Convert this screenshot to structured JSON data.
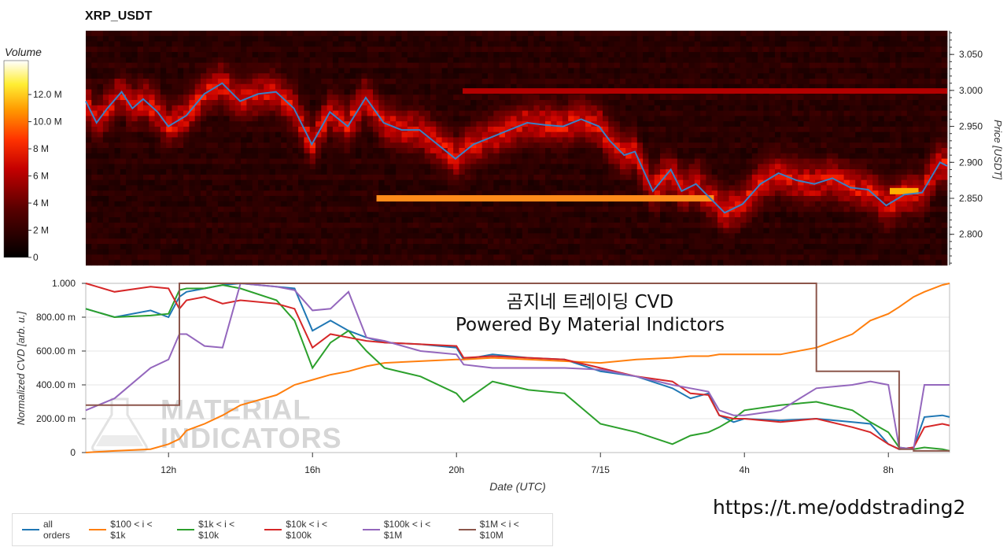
{
  "title": "XRP_USDT",
  "volume_colorbar": {
    "title": "Volume",
    "ticks": [
      {
        "label": "12.0 M",
        "value": 12000000
      },
      {
        "label": "10.0 M",
        "value": 10000000
      },
      {
        "label": "8 M",
        "value": 8000000
      },
      {
        "label": "6 M",
        "value": 6000000
      },
      {
        "label": "4 M",
        "value": 4000000
      },
      {
        "label": "2 M",
        "value": 2000000
      },
      {
        "label": "0",
        "value": 0
      }
    ],
    "max": 14500000
  },
  "overlay_text": {
    "line1": "곰지네 트레이딩 CVD",
    "line2": "Powered By Material Indictors"
  },
  "url": "https://t.me/oddstrading2",
  "watermark": {
    "line1": "MATERIAL",
    "line2": "INDICATORS"
  },
  "colors": {
    "all_orders": "#1f77b4",
    "s100_1k": "#ff7f0e",
    "s1k_10k": "#2ca02c",
    "s10k_100k": "#d62728",
    "s100k_1m": "#9467bd",
    "s1m_10m": "#8c564b",
    "price_line": "#3b7fc4"
  },
  "chart_data": [
    {
      "type": "heatmap",
      "title": "XRP_USDT",
      "ylabel": "Price [USDT]",
      "ylim": [
        2.757,
        3.083
      ],
      "yticks": [
        {
          "label": "3.050",
          "value": 3.05
        },
        {
          "label": "3.000",
          "value": 3.0
        },
        {
          "label": "2.950",
          "value": 2.95
        },
        {
          "label": "2.900",
          "value": 2.9
        },
        {
          "label": "2.850",
          "value": 2.85
        },
        {
          "label": "2.800",
          "value": 2.8
        }
      ],
      "x_range_hours": [
        9.7,
        33.7
      ],
      "price_line": {
        "x": [
          9.7,
          10.0,
          10.3,
          10.7,
          11.0,
          11.3,
          11.7,
          12.0,
          12.5,
          13.0,
          13.5,
          14.0,
          14.5,
          15.0,
          15.5,
          16.0,
          16.5,
          17.0,
          17.5,
          18.0,
          18.5,
          19.0,
          19.5,
          20.0,
          20.5,
          21.0,
          21.5,
          22.0,
          22.5,
          23.0,
          23.5,
          24.0,
          24.3,
          24.7,
          25.0,
          25.5,
          26.0,
          26.3,
          26.7,
          27.0,
          27.5,
          28.0,
          28.5,
          29.0,
          29.5,
          30.0,
          30.5,
          31.0,
          31.5,
          32.0,
          32.5,
          33.0,
          33.5,
          33.7
        ],
        "y": [
          2.985,
          2.955,
          2.975,
          2.998,
          2.975,
          2.988,
          2.97,
          2.95,
          2.965,
          2.995,
          3.01,
          2.985,
          2.995,
          2.998,
          2.975,
          2.925,
          2.97,
          2.95,
          2.99,
          2.955,
          2.945,
          2.945,
          2.925,
          2.905,
          2.925,
          2.935,
          2.945,
          2.955,
          2.952,
          2.95,
          2.96,
          2.95,
          2.93,
          2.91,
          2.915,
          2.86,
          2.89,
          2.86,
          2.87,
          2.855,
          2.83,
          2.842,
          2.87,
          2.885,
          2.875,
          2.87,
          2.878,
          2.865,
          2.862,
          2.84,
          2.855,
          2.858,
          2.9,
          2.895
        ]
      },
      "high_volume_band": {
        "price": 2.85,
        "x_start": 17.8,
        "x_end": 27.2
      },
      "high_volume_band_2": {
        "price": 2.86,
        "x_start": 32.1,
        "x_end": 32.9
      }
    },
    {
      "type": "line",
      "xlabel": "Date (UTC)",
      "ylabel": "Normalized CVD [arb. u.]",
      "ylim": [
        0,
        1.0
      ],
      "x_range_hours": [
        9.7,
        33.7
      ],
      "x_ticks": [
        {
          "label": "12h",
          "value": 12
        },
        {
          "label": "16h",
          "value": 16
        },
        {
          "label": "20h",
          "value": 20
        },
        {
          "label": "7/15",
          "value": 24
        },
        {
          "label": "4h",
          "value": 28
        },
        {
          "label": "8h",
          "value": 32
        }
      ],
      "y_ticks": [
        {
          "label": "1.000",
          "value": 1.0
        },
        {
          "label": "800.00 m",
          "value": 0.8
        },
        {
          "label": "600.00 m",
          "value": 0.6
        },
        {
          "label": "400.00 m",
          "value": 0.4
        },
        {
          "label": "200.00 m",
          "value": 0.2
        },
        {
          "label": "0",
          "value": 0.0
        }
      ],
      "x": [
        9.7,
        10.5,
        11.5,
        12.0,
        12.3,
        12.5,
        13.0,
        13.5,
        14.0,
        15.0,
        15.5,
        16.0,
        16.5,
        17.0,
        17.5,
        18.0,
        19.0,
        20.0,
        20.2,
        21.0,
        22.0,
        23.0,
        24.0,
        25.0,
        26.0,
        26.5,
        27.0,
        27.3,
        27.7,
        28.0,
        29.0,
        30.0,
        31.0,
        31.5,
        32.0,
        32.3,
        32.7,
        33.0,
        33.5,
        33.7
      ],
      "series": [
        {
          "name": "all orders",
          "key": "all_orders",
          "values": [
            0.85,
            0.8,
            0.84,
            0.8,
            0.92,
            0.95,
            0.97,
            0.99,
            1.0,
            0.98,
            0.97,
            0.72,
            0.78,
            0.72,
            0.68,
            0.65,
            0.64,
            0.62,
            0.55,
            0.58,
            0.56,
            0.55,
            0.48,
            0.45,
            0.38,
            0.32,
            0.35,
            0.22,
            0.18,
            0.2,
            0.19,
            0.2,
            0.18,
            0.17,
            0.05,
            0.02,
            0.03,
            0.21,
            0.22,
            0.21
          ]
        },
        {
          "name": "$100 < i < $1k",
          "key": "s100_1k",
          "values": [
            0.0,
            0.01,
            0.02,
            0.05,
            0.08,
            0.13,
            0.17,
            0.22,
            0.28,
            0.34,
            0.4,
            0.43,
            0.46,
            0.48,
            0.51,
            0.53,
            0.54,
            0.55,
            0.55,
            0.56,
            0.55,
            0.54,
            0.53,
            0.55,
            0.56,
            0.57,
            0.57,
            0.58,
            0.58,
            0.58,
            0.58,
            0.62,
            0.7,
            0.78,
            0.82,
            0.86,
            0.92,
            0.95,
            0.99,
            1.0
          ]
        },
        {
          "name": "$1k < i < $10k",
          "key": "s1k_10k",
          "values": [
            0.85,
            0.8,
            0.81,
            0.82,
            0.96,
            0.97,
            0.97,
            0.99,
            0.97,
            0.9,
            0.78,
            0.5,
            0.65,
            0.72,
            0.6,
            0.5,
            0.45,
            0.35,
            0.3,
            0.42,
            0.37,
            0.35,
            0.17,
            0.12,
            0.05,
            0.1,
            0.12,
            0.15,
            0.2,
            0.25,
            0.28,
            0.3,
            0.25,
            0.18,
            0.12,
            0.03,
            0.02,
            0.03,
            0.02,
            0.01
          ]
        },
        {
          "name": "$10k < i < $100k",
          "key": "s10k_100k",
          "values": [
            1.0,
            0.95,
            0.98,
            0.97,
            0.85,
            0.9,
            0.92,
            0.88,
            0.9,
            0.88,
            0.85,
            0.62,
            0.7,
            0.68,
            0.66,
            0.65,
            0.64,
            0.63,
            0.56,
            0.57,
            0.56,
            0.55,
            0.5,
            0.45,
            0.42,
            0.35,
            0.34,
            0.22,
            0.2,
            0.2,
            0.18,
            0.2,
            0.15,
            0.12,
            0.05,
            0.02,
            0.03,
            0.15,
            0.17,
            0.16
          ]
        },
        {
          "name": "$100k < i < $1M",
          "key": "s100k_1m",
          "values": [
            0.25,
            0.32,
            0.5,
            0.55,
            0.7,
            0.7,
            0.63,
            0.62,
            1.0,
            0.98,
            0.96,
            0.84,
            0.85,
            0.95,
            0.68,
            0.66,
            0.6,
            0.58,
            0.52,
            0.5,
            0.5,
            0.5,
            0.49,
            0.45,
            0.4,
            0.38,
            0.36,
            0.25,
            0.22,
            0.22,
            0.25,
            0.38,
            0.4,
            0.42,
            0.4,
            0.03,
            0.02,
            0.4,
            0.4,
            0.4
          ]
        },
        {
          "name": "$1M < i < $10M",
          "key": "s1m_10m",
          "values": [
            0.28,
            0.28,
            0.28,
            0.28,
            1.0,
            1.0,
            1.0,
            1.0,
            1.0,
            1.0,
            1.0,
            1.0,
            1.0,
            1.0,
            1.0,
            1.0,
            1.0,
            1.0,
            1.0,
            1.0,
            1.0,
            1.0,
            1.0,
            1.0,
            1.0,
            1.0,
            1.0,
            1.0,
            1.0,
            1.0,
            1.0,
            0.48,
            0.48,
            0.48,
            0.48,
            0.02,
            0.01,
            0.01,
            0.01,
            0.01
          ]
        }
      ]
    }
  ],
  "axis_labels": {
    "price": "Price [USDT]",
    "cvd_y": "Normalized CVD [arb. u.]",
    "date_x": "Date (UTC)"
  }
}
